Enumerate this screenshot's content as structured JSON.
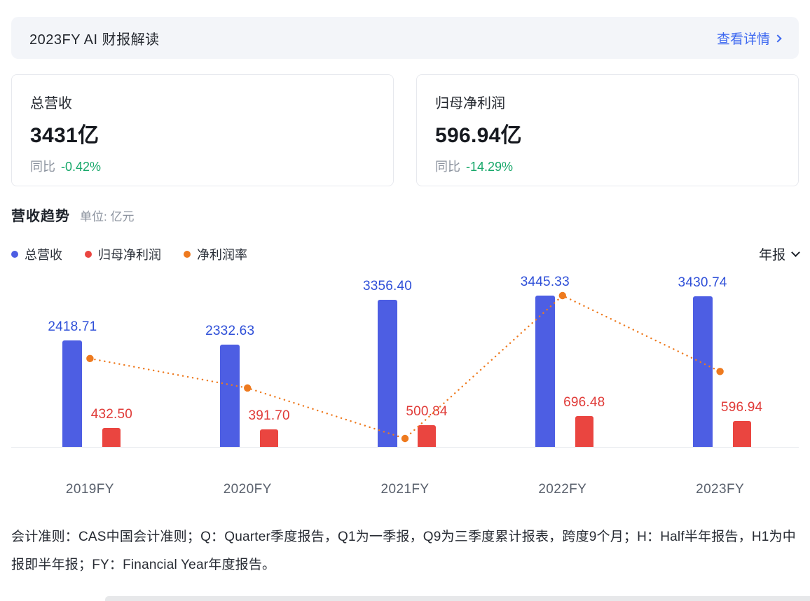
{
  "banner": {
    "title": "2023FY AI 财报解读",
    "link": "查看详情"
  },
  "cards": [
    {
      "label": "总营收",
      "value": "3431亿",
      "yoy_label": "同比",
      "yoy_value": "-0.42%"
    },
    {
      "label": "归母净利润",
      "value": "596.94亿",
      "yoy_label": "同比",
      "yoy_value": "-14.29%"
    }
  ],
  "section": {
    "title": "营收趋势",
    "unit": "单位: 亿元"
  },
  "legend": [
    {
      "label": "总营收",
      "color": "#4d5ee3"
    },
    {
      "label": "归母净利润",
      "color": "#ea4540"
    },
    {
      "label": "净利润率",
      "color": "#ee7a1f"
    }
  ],
  "period_selector": {
    "label": "年报"
  },
  "chart_data": {
    "type": "bar",
    "categories": [
      "2019FY",
      "2020FY",
      "2021FY",
      "2022FY",
      "2023FY"
    ],
    "series": [
      {
        "name": "总营收",
        "type": "bar",
        "color": "#4d5ee3",
        "values": [
          "2418.71",
          "2332.63",
          "3356.40",
          "3445.33",
          "3430.74"
        ]
      },
      {
        "name": "归母净利润",
        "type": "bar",
        "color": "#ea4540",
        "values": [
          "432.50",
          "391.70",
          "500.84",
          "696.48",
          "596.94"
        ]
      },
      {
        "name": "净利润率",
        "type": "line",
        "color": "#ee7a1f",
        "values_pct": [
          17.88,
          16.79,
          14.92,
          20.21,
          17.4
        ]
      }
    ],
    "ylabel": "亿元",
    "value_labels": true,
    "grid": false,
    "legend_position": "top-left"
  },
  "footnote": "会计准则：CAS中国会计准则；Q：Quarter季度报告，Q1为一季报，Q9为三季度累计报表，跨度9个月；H：Half半年报告，H1为中报即半年报；FY：Financial Year年度报告。"
}
